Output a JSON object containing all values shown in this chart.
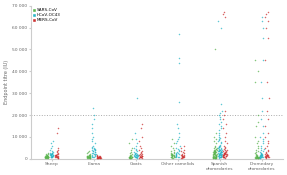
{
  "title": "",
  "ylabel": "Endpoint titre (IU)",
  "ylim": [
    0,
    70000
  ],
  "yticks": [
    0,
    10000,
    20000,
    30000,
    40000,
    50000,
    60000,
    70000
  ],
  "ytick_labels": [
    "0",
    "10 000",
    "20 000",
    "30 000",
    "40 000",
    "50 000",
    "60 000",
    "70 000"
  ],
  "dotted_line_y": 20000,
  "categories": [
    "Sheep",
    "Llama",
    "Goats",
    "Other camelids",
    "Spanish dromedaries",
    "Dromedary dromedaries"
  ],
  "colors": {
    "SARS_CoV": "#5bb450",
    "HCoV_OC43": "#29b6c8",
    "MERS_CoV": "#cc3333"
  },
  "background_color": "#ffffff",
  "sheep": {
    "SARS": [
      400,
      450,
      500,
      550,
      600,
      620,
      640,
      660,
      680,
      700,
      720,
      740,
      760,
      780,
      800,
      820,
      840,
      860,
      880,
      900,
      920,
      940,
      960,
      980,
      1000,
      1050,
      1100,
      1150,
      1200,
      1300,
      1400,
      1500,
      1600,
      1800,
      2000,
      2200,
      2500
    ],
    "HCoV": [
      600,
      700,
      800,
      900,
      1000,
      1100,
      1200,
      1300,
      1400,
      1500,
      1600,
      1700,
      1800,
      1900,
      2000,
      2100,
      2200,
      2300,
      2400,
      2500,
      2600,
      2700,
      2800,
      3000,
      3500,
      4000,
      5000,
      6000,
      7000,
      8000
    ],
    "MERS": [
      400,
      500,
      600,
      700,
      800,
      900,
      1000,
      1100,
      1200,
      1300,
      1400,
      1500,
      1600,
      1700,
      1800,
      2000,
      2200,
      2500,
      3000,
      3500,
      4000,
      5000,
      12000,
      14000
    ]
  },
  "llama": {
    "SARS": [
      300,
      350,
      400,
      450,
      500,
      550,
      600,
      650,
      700,
      750,
      800,
      850,
      900,
      950,
      1000,
      1050,
      1100,
      1150,
      1200,
      1300,
      1400,
      1500,
      1600,
      1800,
      2000,
      2500,
      3000,
      3500
    ],
    "HCoV": [
      800,
      900,
      1000,
      1200,
      1400,
      1600,
      1800,
      2000,
      2200,
      2400,
      2600,
      2800,
      3000,
      3200,
      3400,
      3600,
      3800,
      4000,
      4200,
      4400,
      4600,
      4800,
      5000,
      5500,
      6000,
      7000,
      8000,
      9000,
      10000,
      12000,
      14000,
      16000,
      18000,
      20000,
      23000
    ],
    "MERS": [
      200,
      250,
      300,
      350,
      400,
      450,
      500,
      550,
      600,
      650,
      700,
      750,
      800,
      850,
      900,
      950,
      1000,
      1100,
      1200,
      1300,
      1400,
      1500
    ]
  },
  "goats": {
    "SARS": [
      300,
      350,
      400,
      450,
      500,
      550,
      600,
      650,
      700,
      750,
      800,
      850,
      900,
      950,
      1000,
      1100,
      1200,
      1400,
      1600,
      1800,
      2000,
      2500,
      3000,
      4000,
      5000,
      7000,
      9000
    ],
    "HCoV": [
      500,
      600,
      700,
      800,
      900,
      1000,
      1100,
      1200,
      1300,
      1400,
      1500,
      1600,
      1700,
      1800,
      1900,
      2000,
      2200,
      2400,
      2600,
      2800,
      3000,
      3500,
      4000,
      4500,
      5000,
      6000,
      7000,
      9000,
      12000,
      28000
    ],
    "MERS": [
      400,
      500,
      600,
      700,
      800,
      900,
      1000,
      1100,
      1200,
      1300,
      1400,
      1600,
      1800,
      2000,
      2200,
      2500,
      3000,
      3500,
      4000,
      5000,
      6000,
      8000,
      10000,
      14000,
      16000
    ]
  },
  "other_camelids": {
    "SARS": [
      400,
      500,
      600,
      700,
      800,
      900,
      1000,
      1100,
      1200,
      1300,
      1400,
      1500,
      1600,
      1700,
      1800,
      1900,
      2000,
      2200,
      2400,
      2600,
      2800,
      3000,
      3500,
      4000,
      5000,
      6000,
      7000,
      9000
    ],
    "HCoV": [
      600,
      800,
      1000,
      1200,
      1400,
      1600,
      1800,
      2000,
      2200,
      2400,
      2600,
      2800,
      3000,
      3500,
      4000,
      4500,
      5000,
      6000,
      7000,
      8000,
      9000,
      10000,
      12000,
      14000,
      16000,
      26000,
      44000,
      46000,
      57000
    ],
    "MERS": [
      400,
      500,
      600,
      700,
      800,
      900,
      1000,
      1100,
      1200,
      1300,
      1400,
      1500,
      1600,
      1800,
      2000,
      2500,
      3000,
      3500,
      4000,
      5000,
      6000
    ]
  },
  "spanish_dromedaries": {
    "SARS": [
      200,
      250,
      300,
      350,
      400,
      450,
      500,
      550,
      600,
      650,
      700,
      750,
      800,
      850,
      900,
      950,
      1000,
      1050,
      1100,
      1150,
      1200,
      1300,
      1400,
      1500,
      1600,
      1700,
      1800,
      1900,
      2000,
      2100,
      2200,
      2300,
      2400,
      2500,
      2600,
      2700,
      2800,
      2900,
      3000,
      3100,
      3200,
      3300,
      3400,
      3500,
      3600,
      3700,
      3800,
      4000,
      4200,
      4400,
      4600,
      4800,
      5000,
      5500,
      6000,
      7000,
      8000,
      9000,
      10000,
      12000,
      50000
    ],
    "HCoV": [
      500,
      600,
      700,
      800,
      900,
      1000,
      1100,
      1200,
      1300,
      1400,
      1500,
      1600,
      1700,
      1800,
      1900,
      2000,
      2100,
      2200,
      2300,
      2400,
      2500,
      2600,
      2700,
      2800,
      2900,
      3000,
      3100,
      3200,
      3300,
      3400,
      3500,
      3600,
      3700,
      3800,
      3900,
      4000,
      4200,
      4400,
      4600,
      4800,
      5000,
      5200,
      5400,
      5600,
      5800,
      6000,
      6500,
      7000,
      7500,
      8000,
      8500,
      9000,
      9500,
      10000,
      11000,
      12000,
      13000,
      14000,
      15000,
      16000,
      17000,
      18000,
      19000,
      20000,
      21000,
      22000,
      25000,
      60000,
      63000
    ],
    "MERS": [
      500,
      600,
      700,
      800,
      900,
      1000,
      1100,
      1200,
      1300,
      1400,
      1500,
      1600,
      1700,
      1800,
      1900,
      2000,
      2100,
      2200,
      2300,
      2400,
      2500,
      2600,
      2700,
      2800,
      3000,
      3200,
      3400,
      3600,
      3800,
      4000,
      4500,
      5000,
      5500,
      6000,
      7000,
      8000,
      10000,
      12000,
      14000,
      16000,
      18000,
      20000,
      22000,
      65000,
      66000,
      67000
    ]
  },
  "dromedary_dromedaries": {
    "SARS": [
      200,
      250,
      300,
      350,
      400,
      450,
      500,
      550,
      600,
      650,
      700,
      750,
      800,
      850,
      900,
      950,
      1000,
      1100,
      1200,
      1400,
      1600,
      1800,
      2000,
      2500,
      3000,
      3500,
      4000,
      5000,
      6000,
      7000,
      8000,
      10000,
      15000,
      17000,
      20000,
      35000,
      40000,
      45000
    ],
    "HCoV": [
      400,
      500,
      600,
      700,
      800,
      900,
      1000,
      1100,
      1200,
      1300,
      1400,
      1500,
      1600,
      1700,
      1800,
      1900,
      2000,
      2200,
      2400,
      2600,
      2800,
      3000,
      3500,
      4000,
      4500,
      5000,
      6000,
      7000,
      8000,
      9000,
      10000,
      12000,
      15000,
      18000,
      22000,
      28000,
      35000,
      45000,
      55000,
      60000,
      63000,
      65000
    ],
    "MERS": [
      500,
      600,
      700,
      800,
      900,
      1000,
      1100,
      1200,
      1300,
      1400,
      1500,
      1600,
      1700,
      1800,
      2000,
      2200,
      2500,
      3000,
      3500,
      4000,
      5000,
      6000,
      7000,
      8000,
      10000,
      12000,
      15000,
      18000,
      22000,
      28000,
      35000,
      45000,
      55000,
      60000,
      63000,
      65000,
      66000,
      67000
    ]
  }
}
